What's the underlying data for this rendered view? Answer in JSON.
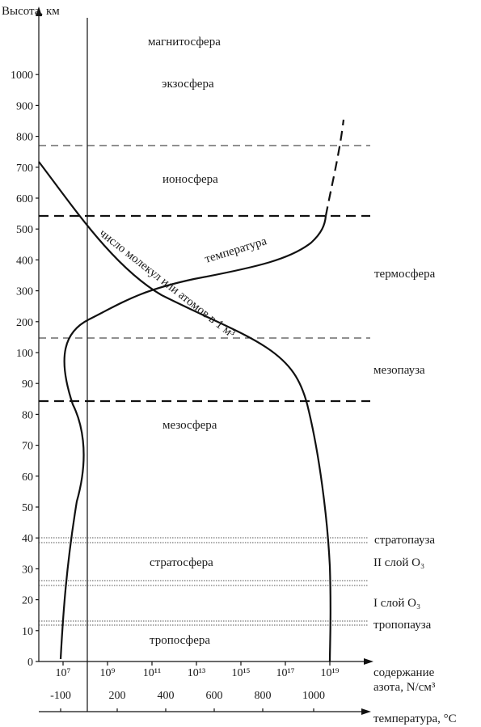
{
  "y_axis": {
    "title": "Высота, км",
    "ticks": [
      "0",
      "10",
      "20",
      "30",
      "40",
      "50",
      "60",
      "70",
      "80",
      "90",
      "100",
      "200",
      "300",
      "400",
      "500",
      "600",
      "700",
      "800",
      "900",
      "1000"
    ]
  },
  "x_axes": {
    "concentration": {
      "title_line1": "содержание",
      "title_line2": "азота, N/см³",
      "ticks": [
        "10⁷",
        "10⁹",
        "10¹¹",
        "10¹³",
        "10¹⁵",
        "10¹⁷",
        "10¹⁹"
      ]
    },
    "temperature": {
      "title": "температура, °С",
      "ticks": [
        "-100",
        "200",
        "400",
        "600",
        "800",
        "1000"
      ]
    }
  },
  "layers": [
    {
      "id": "magnetosphere",
      "label": "магнитосфера"
    },
    {
      "id": "exosphere",
      "label": "экзосфера"
    },
    {
      "id": "ionosphere",
      "label": "ионосфера"
    },
    {
      "id": "thermosphere",
      "label": "термосфера"
    },
    {
      "id": "mesopause",
      "label": "мезопауза"
    },
    {
      "id": "mesosphere",
      "label": "мезосфера"
    },
    {
      "id": "stratopause",
      "label": "стратопауза"
    },
    {
      "id": "stratosphere",
      "label": "стратосфера"
    },
    {
      "id": "ozone2",
      "label": "II слой O₃"
    },
    {
      "id": "ozone1",
      "label": "I слой O₃"
    },
    {
      "id": "tropopause",
      "label": "тропопауза"
    },
    {
      "id": "troposphere",
      "label": "тропосфера"
    }
  ],
  "curves": {
    "temperature_label": "температура",
    "density_label": "число молекул или атомов в 1 м³"
  }
}
